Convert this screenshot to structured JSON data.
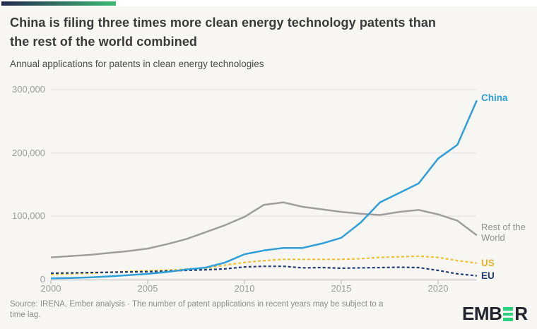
{
  "header": {
    "accent_bar_colors": {
      "from": "#232a4e",
      "to": "#3cba74"
    },
    "title_lines": [
      "China is filing three times more clean energy technology patents than",
      "the rest of the world combined"
    ],
    "subtitle": "Annual applications for patents in clean energy technologies"
  },
  "chart_data": {
    "type": "line",
    "title": "China is filing three times more clean energy technology patents than the rest of the world combined",
    "subtitle": "Annual applications for patents in clean energy technologies",
    "grid": true,
    "legend_position": "line-end-labels",
    "xlabel": "",
    "ylabel": "",
    "ylim": [
      0,
      300000
    ],
    "x": [
      2000,
      2001,
      2002,
      2003,
      2004,
      2005,
      2006,
      2007,
      2008,
      2009,
      2010,
      2011,
      2012,
      2013,
      2014,
      2015,
      2016,
      2017,
      2018,
      2019,
      2020,
      2021,
      2022
    ],
    "x_ticks": [
      2000,
      2005,
      2010,
      2015,
      2020
    ],
    "x_tick_labels": [
      "2000",
      "2005",
      "2010",
      "2015",
      "2020"
    ],
    "y_ticks": [
      0,
      100000,
      200000,
      300000
    ],
    "y_tick_labels": [
      "0",
      "100,000",
      "200,000",
      "300,000"
    ],
    "series": [
      {
        "name": "China",
        "slug": "china",
        "style": "solid",
        "color": "#2f9fd9",
        "label_color": "#2f9fd9",
        "end_label": "China",
        "values": [
          2000,
          2500,
          3500,
          5000,
          7000,
          9000,
          12000,
          16000,
          19000,
          27000,
          40000,
          46000,
          50000,
          50000,
          57000,
          66000,
          90000,
          122000,
          137000,
          152000,
          191000,
          213000,
          283000
        ]
      },
      {
        "name": "Rest of the World",
        "slug": "rest-of-the-world",
        "style": "solid",
        "color": "#9e9e9e",
        "label_color": "#8f8f8f",
        "end_label_line1": "Rest of the",
        "end_label_line2": "World",
        "values": [
          35000,
          37000,
          39000,
          42000,
          45000,
          49000,
          56000,
          64000,
          75000,
          86000,
          99000,
          118000,
          122000,
          115000,
          111000,
          107000,
          104000,
          102000,
          107000,
          110000,
          103000,
          93000,
          70000
        ]
      },
      {
        "name": "US",
        "slug": "us",
        "style": "dashed",
        "color": "#eec133",
        "label_color": "#e3b32a",
        "end_label": "US",
        "values": [
          8000,
          9000,
          10000,
          11500,
          13000,
          14000,
          15000,
          16500,
          18000,
          23000,
          27000,
          30000,
          32000,
          32000,
          32000,
          32000,
          33000,
          35000,
          36000,
          37000,
          35000,
          30000,
          26000
        ]
      },
      {
        "name": "EU",
        "slug": "eu",
        "style": "dashed",
        "color": "#1e3c72",
        "label_color": "#1e3c72",
        "end_label": "EU",
        "values": [
          10000,
          10500,
          11000,
          11500,
          12000,
          12500,
          13500,
          14500,
          15500,
          17000,
          20000,
          21000,
          21000,
          18500,
          19000,
          18000,
          18500,
          19000,
          19500,
          19000,
          14500,
          9000,
          6000
        ]
      }
    ]
  },
  "footer": {
    "source_note_lines": [
      "Source: IRENA, Ember analysis · The number of patent applications in recent years may be subject to a",
      "time lag."
    ],
    "logo": {
      "text_before": "EMB",
      "text_after": "R",
      "green": "#2dd07c",
      "text_color": "#21242d"
    }
  },
  "colors": {
    "background": "#f7f6f3",
    "grid": "#dedede",
    "axis_line": "#bfbfbf",
    "axis_text": "#9c9c9c",
    "title_text": "#3a3a3a",
    "footnote_text": "#8c8c8c"
  }
}
